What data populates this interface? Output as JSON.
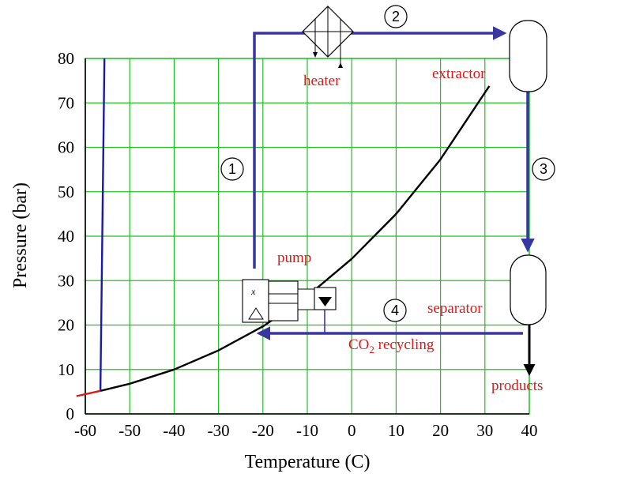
{
  "chart_data": {
    "type": "line",
    "xlabel": "Temperature (C)",
    "ylabel": "Pressure (bar)",
    "xlim": [
      -60,
      40
    ],
    "ylim": [
      0,
      80
    ],
    "x_ticks": [
      "-60",
      "-50",
      "-40",
      "-30",
      "-20",
      "-10",
      "0",
      "10",
      "20",
      "30",
      "40"
    ],
    "y_ticks": [
      "0",
      "10",
      "20",
      "30",
      "40",
      "50",
      "60",
      "70",
      "80"
    ],
    "grid": true,
    "series": [
      {
        "color": "#000000",
        "x": [
          -56.6,
          -50,
          -40,
          -30,
          -20,
          -10,
          0,
          10,
          20,
          31
        ],
        "y": [
          5.2,
          6.8,
          10.0,
          14.3,
          19.7,
          26.5,
          34.9,
          45.0,
          57.3,
          73.8
        ]
      },
      {
        "color": "#1a1aa8",
        "x": [
          -56.6,
          -56.3,
          -56.0,
          -55.7
        ],
        "y": [
          5.2,
          30,
          55,
          80
        ]
      },
      {
        "color": "#d81b1b",
        "x": [
          -62,
          -56.6
        ],
        "y": [
          4.0,
          5.2
        ]
      }
    ]
  },
  "labels": {
    "heater": "heater",
    "extractor": "extractor",
    "pump": "pump",
    "separator": "separator",
    "co2_prefix": "CO",
    "co2_sub": "2",
    "co2_suffix": " recycling",
    "products": "products"
  },
  "steps": [
    "1",
    "2",
    "3",
    "4"
  ],
  "colors": {
    "flow_line": "#3a36a0",
    "label_text": "#d81b1b",
    "grid": "#22c022"
  }
}
